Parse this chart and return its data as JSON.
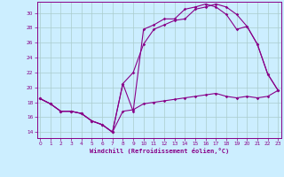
{
  "xlabel": "Windchill (Refroidissement éolien,°C)",
  "bg_color": "#cceeff",
  "line_color": "#880088",
  "grid_color": "#aacccc",
  "x_ticks": [
    0,
    1,
    2,
    3,
    4,
    5,
    6,
    7,
    8,
    9,
    10,
    11,
    12,
    13,
    14,
    15,
    16,
    17,
    18,
    19,
    20,
    21,
    22,
    23
  ],
  "y_ticks": [
    14,
    16,
    18,
    20,
    22,
    24,
    26,
    28,
    30
  ],
  "xlim": [
    -0.3,
    23.3
  ],
  "ylim": [
    13.2,
    31.5
  ],
  "series1_x": [
    0,
    1,
    2,
    3,
    4,
    5,
    6,
    7,
    8,
    9,
    10,
    11,
    12,
    13,
    14,
    15,
    16,
    17,
    18,
    19,
    20,
    21,
    22,
    23
  ],
  "series1_y": [
    18.5,
    17.8,
    16.8,
    16.8,
    16.5,
    15.5,
    15.0,
    14.0,
    20.5,
    16.8,
    27.8,
    28.4,
    29.2,
    29.2,
    30.5,
    30.8,
    31.2,
    30.8,
    29.8,
    27.8,
    28.2,
    25.8,
    21.8,
    19.6
  ],
  "series2_x": [
    0,
    1,
    2,
    3,
    4,
    5,
    6,
    7,
    8,
    9,
    10,
    11,
    12,
    13,
    14,
    15,
    16,
    17,
    18,
    19,
    20,
    21,
    22,
    23
  ],
  "series2_y": [
    18.5,
    17.8,
    16.8,
    16.8,
    16.5,
    15.5,
    15.0,
    14.0,
    16.8,
    17.0,
    17.8,
    18.0,
    18.2,
    18.4,
    18.6,
    18.8,
    19.0,
    19.2,
    18.8,
    18.6,
    18.8,
    18.6,
    18.8,
    19.6
  ],
  "series3_x": [
    0,
    1,
    2,
    3,
    4,
    5,
    6,
    7,
    8,
    9,
    10,
    11,
    12,
    13,
    14,
    15,
    16,
    17,
    18,
    19,
    20,
    21,
    22,
    23
  ],
  "series3_y": [
    18.5,
    17.8,
    16.8,
    16.8,
    16.5,
    15.5,
    15.0,
    14.0,
    20.5,
    22.0,
    25.8,
    27.8,
    28.4,
    29.0,
    29.2,
    30.5,
    30.8,
    31.2,
    30.8,
    29.8,
    28.2,
    25.8,
    21.8,
    19.6
  ]
}
